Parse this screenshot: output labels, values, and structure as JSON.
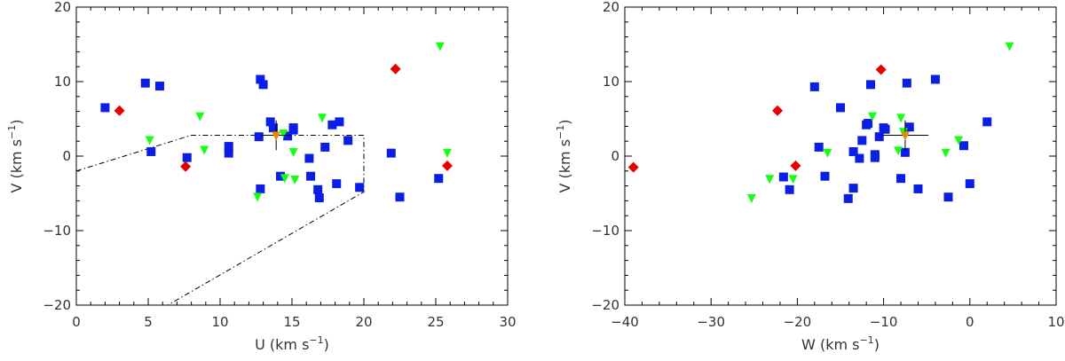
{
  "colors": {
    "blue": "#0a1ee6",
    "green": "#14ff14",
    "red": "#e60000",
    "orange": "#e68a00",
    "axis": "#000000"
  },
  "chart_data": [
    {
      "type": "scatter",
      "xlabel": "U (km s",
      "xlabel_sup": "-1",
      "xlabel_close": ")",
      "ylabel": "V (km s",
      "ylabel_sup": "-1",
      "ylabel_close": ")",
      "xlim": [
        0,
        30
      ],
      "ylim": [
        -20,
        20
      ],
      "xticks": [
        0,
        5,
        10,
        15,
        20,
        25,
        30
      ],
      "yticks": [
        -20,
        -10,
        0,
        10,
        20
      ],
      "series": [
        {
          "marker": "square",
          "color": "#0a1ee6",
          "points": [
            [
              2,
              6.5
            ],
            [
              4.8,
              9.8
            ],
            [
              5.8,
              9.4
            ],
            [
              5.2,
              0.6
            ],
            [
              7.7,
              -0.2
            ],
            [
              10.6,
              0.4
            ],
            [
              10.6,
              1.3
            ],
            [
              12.8,
              10.3
            ],
            [
              13,
              9.6
            ],
            [
              13.5,
              4.6
            ],
            [
              13.7,
              3.8
            ],
            [
              12.7,
              2.6
            ],
            [
              12.8,
              -4.4
            ],
            [
              14.2,
              -2.7
            ],
            [
              15.1,
              3.8
            ],
            [
              15.1,
              3.5
            ],
            [
              16.2,
              -0.3
            ],
            [
              16.3,
              -2.7
            ],
            [
              16.8,
              -4.5
            ],
            [
              16.9,
              -5.6
            ],
            [
              17.3,
              1.2
            ],
            [
              17.8,
              4.2
            ],
            [
              18.3,
              4.6
            ],
            [
              18.1,
              -3.7
            ],
            [
              18.9,
              2.1
            ],
            [
              19.7,
              -4.2
            ],
            [
              21.9,
              0.4
            ],
            [
              22.5,
              -5.5
            ],
            [
              25.2,
              -3
            ],
            [
              14.7,
              2.7
            ]
          ]
        },
        {
          "marker": "triangle-down",
          "color": "#14ff14",
          "points": [
            [
              5.1,
              2.2
            ],
            [
              8.6,
              5.4
            ],
            [
              8.9,
              0.9
            ],
            [
              12.6,
              -5.4
            ],
            [
              14.4,
              3.1
            ],
            [
              14.5,
              -2.9
            ],
            [
              15.1,
              0.6
            ],
            [
              15.2,
              -3.1
            ],
            [
              17.1,
              5.2
            ],
            [
              25.3,
              14.8
            ],
            [
              25.8,
              0.5
            ]
          ]
        },
        {
          "marker": "diamond",
          "color": "#e60000",
          "points": [
            [
              3,
              6.1
            ],
            [
              7.6,
              -1.4
            ],
            [
              22.2,
              11.7
            ],
            [
              25.8,
              -1.3
            ]
          ]
        }
      ],
      "mean_marker": {
        "x": 13.9,
        "y": 2.8,
        "color": "#e68a00",
        "err_x": 1.0,
        "err_y": 2.0
      },
      "region": {
        "style": "dash-dot",
        "vertices": [
          [
            0,
            -2
          ],
          [
            8,
            2.8
          ],
          [
            20,
            2.8
          ],
          [
            20,
            -4.8
          ],
          [
            6,
            -20.4
          ]
        ]
      }
    },
    {
      "type": "scatter",
      "xlabel": "W (km s",
      "xlabel_sup": "-1",
      "xlabel_close": ")",
      "ylabel": "V (km s",
      "ylabel_sup": "-1",
      "ylabel_close": ")",
      "xlim": [
        -40,
        10
      ],
      "ylim": [
        -20,
        20
      ],
      "xticks": [
        -40,
        -30,
        -20,
        -10,
        0,
        10
      ],
      "yticks": [
        -20,
        -10,
        0,
        10,
        20
      ],
      "series": [
        {
          "marker": "square",
          "color": "#0a1ee6",
          "points": [
            [
              -18,
              9.3
            ],
            [
              -15,
              6.5
            ],
            [
              -4,
              10.3
            ],
            [
              -7.3,
              9.8
            ],
            [
              -11.5,
              9.6
            ],
            [
              2,
              4.6
            ],
            [
              -11.8,
              4.4
            ],
            [
              -12,
              4.2
            ],
            [
              -10,
              3.8
            ],
            [
              -7,
              3.9
            ],
            [
              -9.8,
              3.6
            ],
            [
              -12.5,
              2.1
            ],
            [
              -10.5,
              2.6
            ],
            [
              -0.7,
              1.4
            ],
            [
              -17.5,
              1.2
            ],
            [
              -13.5,
              0.6
            ],
            [
              -11,
              0.2
            ],
            [
              -11,
              -0.2
            ],
            [
              -12.8,
              -0.3
            ],
            [
              -7.5,
              0.5
            ],
            [
              -16.8,
              -2.7
            ],
            [
              -21.6,
              -2.8
            ],
            [
              -8,
              -3
            ],
            [
              -13.5,
              -4.3
            ],
            [
              -20.9,
              -4.5
            ],
            [
              -6,
              -4.4
            ],
            [
              -14.1,
              -5.7
            ],
            [
              -2.5,
              -5.5
            ],
            [
              0,
              -3.7
            ]
          ]
        },
        {
          "marker": "triangle-down",
          "color": "#14ff14",
          "points": [
            [
              4.6,
              14.8
            ],
            [
              -11.3,
              5.4
            ],
            [
              -8,
              5.2
            ],
            [
              -7.7,
              3.3
            ],
            [
              -16.5,
              0.5
            ],
            [
              -2.8,
              0.5
            ],
            [
              -1.3,
              2.2
            ],
            [
              -8.3,
              0.8
            ],
            [
              -23.2,
              -3
            ],
            [
              -20.5,
              -3
            ],
            [
              -25.3,
              -5.6
            ]
          ]
        },
        {
          "marker": "diamond",
          "color": "#e60000",
          "points": [
            [
              -10.3,
              11.6
            ],
            [
              -22.3,
              6.1
            ],
            [
              -20.2,
              -1.3
            ],
            [
              -39,
              -1.5
            ]
          ]
        }
      ],
      "mean_marker": {
        "x": -7.5,
        "y": 2.8,
        "color": "#e68a00",
        "err_x": 2.7,
        "err_y": 2.0
      }
    }
  ]
}
